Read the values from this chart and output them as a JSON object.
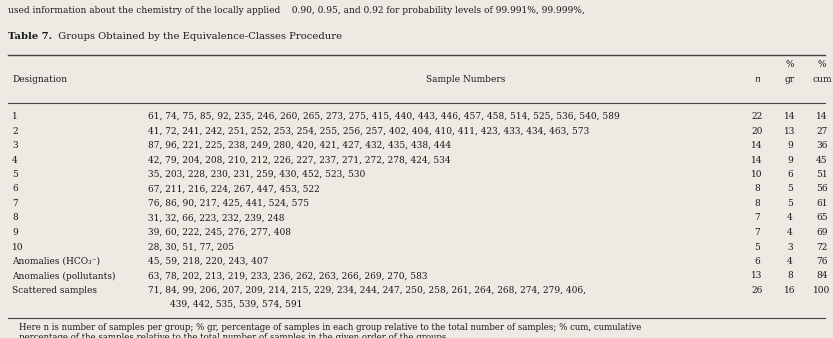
{
  "title": "Table 7.",
  "title_desc": "  Groups Obtained by the Equivalence-Classes Procedure",
  "header_top_text": "used information about the chemistry of the locally applied    0.90, 0.95, and 0.92 for probability levels of 99.991%, 99.999%,",
  "footer_line1": "    Here n is number of samples per group; % gr, percentage of samples in each group relative to the total number of samples; % cum, cumulative",
  "footer_line2": "    percentage of the samples relative to the total number of samples in the given order of the groups.",
  "rows": [
    {
      "desig": "1",
      "samples": "61, 74, 75, 85, 92, 235, 246, 260, 265, 273, 275, 415, 440, 443, 446, 457, 458, 514, 525, 536, 540, 589",
      "samples2": "",
      "n": "22",
      "gr": "14",
      "cum": "14"
    },
    {
      "desig": "2",
      "samples": "41, 72, 241, 242, 251, 252, 253, 254, 255, 256, 257, 402, 404, 410, 411, 423, 433, 434, 463, 573",
      "samples2": "",
      "n": "20",
      "gr": "13",
      "cum": "27"
    },
    {
      "desig": "3",
      "samples": "87, 96, 221, 225, 238, 249, 280, 420, 421, 427, 432, 435, 438, 444",
      "samples2": "",
      "n": "14",
      "gr": "9",
      "cum": "36"
    },
    {
      "desig": "4",
      "samples": "42, 79, 204, 208, 210, 212, 226, 227, 237, 271, 272, 278, 424, 534",
      "samples2": "",
      "n": "14",
      "gr": "9",
      "cum": "45"
    },
    {
      "desig": "5",
      "samples": "35, 203, 228, 230, 231, 259, 430, 452, 523, 530",
      "samples2": "",
      "n": "10",
      "gr": "6",
      "cum": "51"
    },
    {
      "desig": "6",
      "samples": "67, 211, 216, 224, 267, 447, 453, 522",
      "samples2": "",
      "n": "8",
      "gr": "5",
      "cum": "56"
    },
    {
      "desig": "7",
      "samples": "76, 86, 90, 217, 425, 441, 524, 575",
      "samples2": "",
      "n": "8",
      "gr": "5",
      "cum": "61"
    },
    {
      "desig": "8",
      "samples": "31, 32, 66, 223, 232, 239, 248",
      "samples2": "",
      "n": "7",
      "gr": "4",
      "cum": "65"
    },
    {
      "desig": "9",
      "samples": "39, 60, 222, 245, 276, 277, 408",
      "samples2": "",
      "n": "7",
      "gr": "4",
      "cum": "69"
    },
    {
      "desig": "10",
      "samples": "28, 30, 51, 77, 205",
      "samples2": "",
      "n": "5",
      "gr": "3",
      "cum": "72"
    },
    {
      "desig": "Anomalies (HCO₃⁻)",
      "samples": "45, 59, 218, 220, 243, 407",
      "samples2": "",
      "n": "6",
      "gr": "4",
      "cum": "76"
    },
    {
      "desig": "Anomalies (pollutants)",
      "samples": "63, 78, 202, 213, 219, 233, 236, 262, 263, 266, 269, 270, 583",
      "samples2": "",
      "n": "13",
      "gr": "8",
      "cum": "84"
    },
    {
      "desig": "Scattered samples",
      "samples": "71, 84, 99, 206, 207, 209, 214, 215, 229, 234, 244, 247, 250, 258, 261, 264, 268, 274, 279, 406,",
      "samples2": "439, 442, 535, 539, 574, 591",
      "n": "26",
      "gr": "16",
      "cum": "100"
    }
  ],
  "bg_color": "#ede9e3",
  "text_color": "#1a1a1a",
  "fig_width": 8.33,
  "fig_height": 3.38,
  "dpi": 100
}
